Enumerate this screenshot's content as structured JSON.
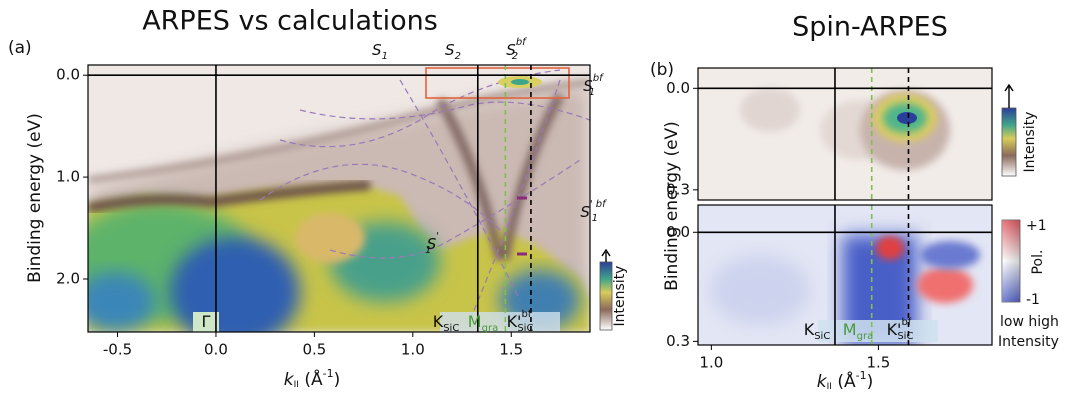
{
  "chart_data": [
    {
      "type": "heatmap",
      "title": "ARPES vs calculations",
      "panel_label": "(a)",
      "ylabel": "Binding energy (eV)",
      "xlabel": {
        "text": "k",
        "sub": "II",
        "rest": " (Å",
        "sup": "-1",
        "end": ")"
      },
      "xlim": [
        -0.65,
        1.9
      ],
      "ylim": [
        2.52,
        -0.1
      ],
      "xticks": [
        -0.5,
        {
          "value": 0,
          "label": "0.0"
        },
        0.5,
        {
          "value": 1,
          "label": "1.0"
        },
        1.5
      ],
      "yticks": [
        {
          "value": 0,
          "label": "0.0"
        },
        {
          "value": 1,
          "label": "1.0"
        },
        {
          "value": 2,
          "label": "2.0"
        }
      ],
      "vlines": [
        {
          "x": 0,
          "color": "#000000",
          "dash": false
        },
        {
          "x": 1.33,
          "color": "#000000",
          "dash": false
        },
        {
          "x": 1.47,
          "color": "#7fbf4f",
          "dash": true
        },
        {
          "x": 1.6,
          "color": "#000000",
          "dash": true
        }
      ],
      "hlines": [
        {
          "y": 0,
          "color": "#000000",
          "dash": false
        }
      ],
      "annotations": [
        {
          "text": "S",
          "sub": "1"
        },
        {
          "text": "S",
          "sub": "2"
        },
        {
          "text": "S",
          "sub": "2",
          "sup": "bf"
        },
        {
          "text": "S",
          "sub": "1",
          "sup": "bf"
        },
        {
          "text": "S",
          "sub": "1",
          "sup": "' bf"
        },
        {
          "text": "S",
          "sub": "1",
          "sup": "'"
        },
        {
          "text": "Γ"
        },
        {
          "text": "K",
          "sub": "SiC"
        },
        {
          "text": "M",
          "sub": "gra"
        },
        {
          "text": "K'",
          "sub": "SiC",
          "sup": "bf"
        }
      ],
      "colorbar_labels": [
        "Intensity"
      ]
    },
    {
      "type": "heatmap",
      "title": "Spin-ARPES",
      "panel_label": "(b)",
      "ylabel": "Binding energy (eV)",
      "xlim": [
        0.96,
        1.84
      ],
      "ylim": [
        0.33,
        -0.06
      ],
      "yticks": [
        {
          "value": 0,
          "label": "0.0"
        },
        0.3
      ],
      "vlines": [
        {
          "x": 1.37,
          "color": "#000000",
          "dash": false
        },
        {
          "x": 1.48,
          "color": "#7fbf4f",
          "dash": true
        },
        {
          "x": 1.59,
          "color": "#000000",
          "dash": true
        }
      ],
      "hlines": [
        {
          "y": 0,
          "color": "#000000",
          "dash": false
        }
      ],
      "annotations": [],
      "colorbar_labels": [
        "Intensity"
      ]
    },
    {
      "type": "heatmap",
      "xlabel": {
        "text": "k",
        "sub": "II",
        "rest": " (Å",
        "sup": "-1",
        "end": ")"
      },
      "xlim": [
        0.96,
        1.84
      ],
      "ylim": [
        0.31,
        -0.075
      ],
      "xticks": [
        {
          "value": 1,
          "label": "1.0"
        },
        1.5
      ],
      "yticks": [
        {
          "value": 0,
          "label": "0.0"
        },
        0.3
      ],
      "vlines": [
        {
          "x": 1.37,
          "color": "#000000",
          "dash": false
        },
        {
          "x": 1.48,
          "color": "#7fbf4f",
          "dash": true
        },
        {
          "x": 1.59,
          "color": "#000000",
          "dash": true
        }
      ],
      "hlines": [
        {
          "y": 0,
          "color": "#000000",
          "dash": false
        }
      ],
      "annotations": [
        {
          "text": "K",
          "sub": "SiC"
        },
        {
          "text": "M",
          "sub": "gra"
        },
        {
          "text": "K'",
          "sub": "SiC",
          "sup": "bf"
        }
      ],
      "colorbar_labels": [
        "+1",
        "Pol.",
        "-1",
        "low high",
        "Intensity"
      ]
    }
  ]
}
